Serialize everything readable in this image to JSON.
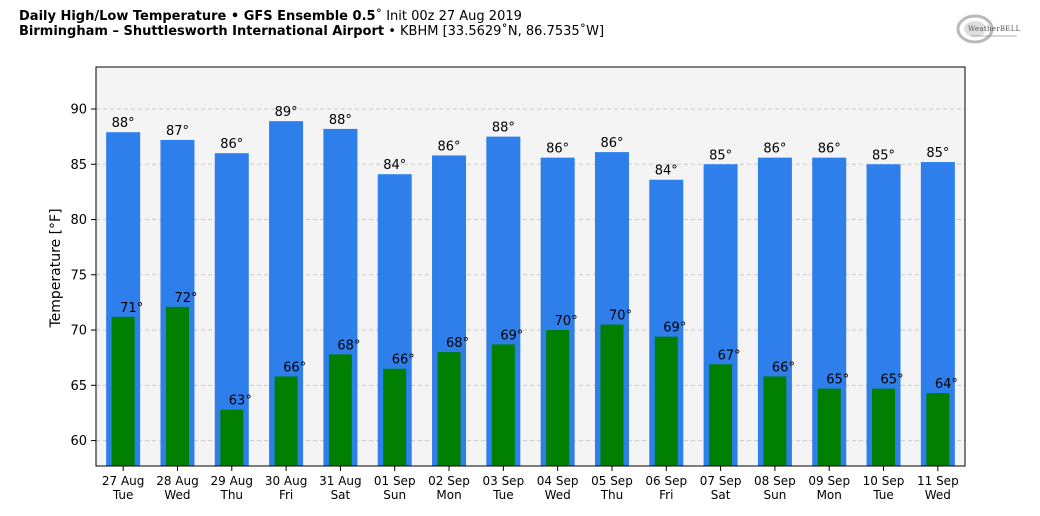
{
  "header": {
    "title_bold": "Daily High/Low Temperature • GFS Ensemble 0.5",
    "title_rest": "˚ Init 00z 27 Aug 2019",
    "location_bold": "Birmingham – Shuttlesworth International Airport",
    "location_rest": " • KBHM [33.5629˚N, 86.7535˚W]"
  },
  "logo": {
    "name": "weatherbell-logo-icon",
    "brand_text": "WeatherBELL"
  },
  "colors": {
    "high": "#2e7feb",
    "low": "#007f00",
    "plot_bg": "#f4f4f4",
    "grid": "#c9c9c9"
  },
  "chart_data": {
    "type": "bar",
    "ylabel": "Temperature [°F]",
    "ylim": [
      57.7,
      93.8
    ],
    "yticks": [
      60,
      65,
      70,
      75,
      80,
      85,
      90
    ],
    "grid": true,
    "categories": [
      [
        "27 Aug",
        "Tue"
      ],
      [
        "28 Aug",
        "Wed"
      ],
      [
        "29 Aug",
        "Thu"
      ],
      [
        "30 Aug",
        "Fri"
      ],
      [
        "31 Aug",
        "Sat"
      ],
      [
        "01 Sep",
        "Sun"
      ],
      [
        "02 Sep",
        "Mon"
      ],
      [
        "03 Sep",
        "Tue"
      ],
      [
        "04 Sep",
        "Wed"
      ],
      [
        "05 Sep",
        "Thu"
      ],
      [
        "06 Sep",
        "Fri"
      ],
      [
        "07 Sep",
        "Sat"
      ],
      [
        "08 Sep",
        "Sun"
      ],
      [
        "09 Sep",
        "Mon"
      ],
      [
        "10 Sep",
        "Tue"
      ],
      [
        "11 Sep",
        "Wed"
      ]
    ],
    "series": [
      {
        "color": "#2e7feb",
        "values": [
          87.9,
          87.2,
          86.0,
          88.9,
          88.2,
          84.1,
          85.8,
          87.5,
          85.6,
          86.1,
          83.6,
          85.0,
          85.6,
          85.6,
          85.0,
          85.2
        ],
        "labels": [
          "88°",
          "87°",
          "86°",
          "89°",
          "88°",
          "84°",
          "86°",
          "88°",
          "86°",
          "86°",
          "84°",
          "85°",
          "86°",
          "86°",
          "85°",
          "85°"
        ]
      },
      {
        "color": "#007f00",
        "values": [
          71.2,
          72.1,
          62.8,
          65.8,
          67.8,
          66.5,
          68.0,
          68.7,
          70.0,
          70.5,
          69.4,
          66.9,
          65.8,
          64.7,
          64.7,
          64.3
        ],
        "labels": [
          "71°",
          "72°",
          "63°",
          "66°",
          "68°",
          "66°",
          "68°",
          "69°",
          "70°",
          "70°",
          "69°",
          "67°",
          "66°",
          "65°",
          "65°",
          "64°"
        ]
      }
    ]
  }
}
